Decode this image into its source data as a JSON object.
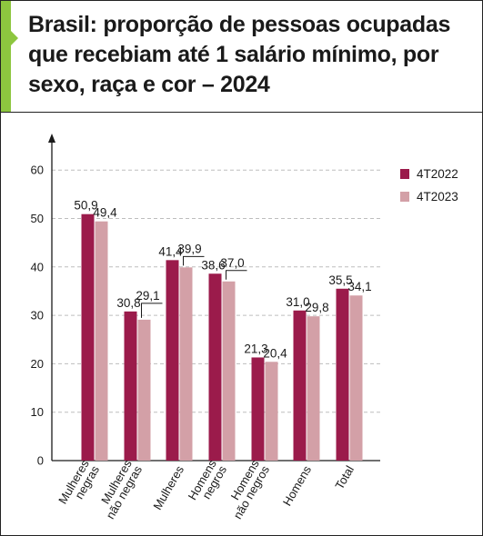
{
  "title": "Brasil: proporção de pessoas ocupadas que recebiam até 1 salário mínimo, por sexo, raça e cor – 2024",
  "colors": {
    "accent": "#8dc63f",
    "series_2022": "#9b1b4b",
    "series_2023": "#d3a0a7",
    "grid": "#bdbdbd"
  },
  "chart_data": {
    "type": "bar",
    "title": "Brasil: proporção de pessoas ocupadas que recebiam até 1 salário mínimo, por sexo, raça e cor – 2024",
    "xlabel": "",
    "ylabel": "",
    "ylim": [
      0,
      60
    ],
    "yticks": [
      0,
      10,
      20,
      30,
      40,
      50,
      60
    ],
    "grid": true,
    "legend_position": "top-right",
    "categories": [
      [
        "Mulheres",
        "negras"
      ],
      [
        "Mulheres",
        "não negras"
      ],
      [
        "Mulheres"
      ],
      [
        "Homens",
        "negros"
      ],
      [
        "Homens",
        "não negros"
      ],
      [
        "Homens"
      ],
      [
        "Total"
      ]
    ],
    "series": [
      {
        "name": "4T2022",
        "values": [
          50.9,
          30.8,
          41.4,
          38.6,
          21.3,
          31.0,
          35.5
        ],
        "labels": [
          "50,9",
          "30,8",
          "41,4",
          "38,6",
          "21,3",
          "31,0",
          "35,5"
        ],
        "color": "#9b1b4b"
      },
      {
        "name": "4T2023",
        "values": [
          49.4,
          29.1,
          39.9,
          37.0,
          20.4,
          29.8,
          34.1
        ],
        "labels": [
          "49,4",
          "29,1",
          "39,9",
          "37,0",
          "20,4",
          "29,8",
          "34,1"
        ],
        "color": "#d3a0a7"
      }
    ]
  }
}
